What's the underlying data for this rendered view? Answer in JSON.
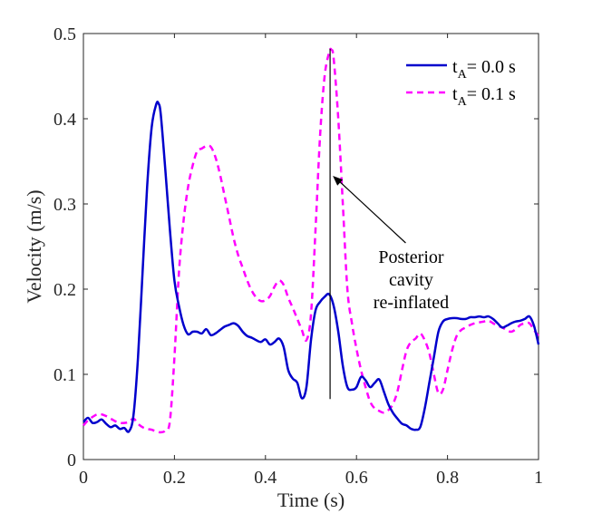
{
  "chart_data": {
    "type": "line",
    "title": "",
    "xlabel": "Time (s)",
    "ylabel": "Velocity (m/s)",
    "xlim": [
      0,
      1
    ],
    "ylim": [
      0,
      0.5
    ],
    "xticks": [
      0,
      0.2,
      0.4,
      0.6,
      0.8,
      1
    ],
    "xtick_labels": [
      "0",
      "0.2",
      "0.4",
      "0.6",
      "0.8",
      "1"
    ],
    "yticks": [
      0,
      0.1,
      0.2,
      0.3,
      0.4,
      0.5
    ],
    "ytick_labels": [
      "0",
      "0.1",
      "0.2",
      "0.3",
      "0.4",
      "0.5"
    ],
    "grid": false,
    "legend_position": "top-right",
    "series": [
      {
        "name": "t_A = 0.0 s",
        "label_main": "t",
        "label_sub": "A",
        "label_rest": "= 0.0 s",
        "color": "#0000CC",
        "style": "solid",
        "x": [
          0,
          0.01,
          0.02,
          0.03,
          0.04,
          0.05,
          0.06,
          0.07,
          0.08,
          0.09,
          0.1,
          0.11,
          0.12,
          0.13,
          0.14,
          0.15,
          0.16,
          0.165,
          0.17,
          0.18,
          0.19,
          0.2,
          0.21,
          0.22,
          0.23,
          0.24,
          0.25,
          0.26,
          0.27,
          0.28,
          0.29,
          0.3,
          0.31,
          0.32,
          0.33,
          0.34,
          0.35,
          0.36,
          0.37,
          0.38,
          0.39,
          0.4,
          0.41,
          0.42,
          0.43,
          0.44,
          0.45,
          0.46,
          0.47,
          0.48,
          0.49,
          0.5,
          0.51,
          0.52,
          0.53,
          0.54,
          0.55,
          0.56,
          0.57,
          0.58,
          0.59,
          0.6,
          0.61,
          0.62,
          0.63,
          0.64,
          0.65,
          0.66,
          0.67,
          0.68,
          0.69,
          0.7,
          0.71,
          0.72,
          0.73,
          0.74,
          0.75,
          0.76,
          0.77,
          0.78,
          0.79,
          0.8,
          0.81,
          0.82,
          0.83,
          0.84,
          0.85,
          0.86,
          0.87,
          0.88,
          0.89,
          0.9,
          0.91,
          0.92,
          0.93,
          0.94,
          0.95,
          0.96,
          0.97,
          0.98,
          0.99,
          1.0
        ],
        "y": [
          0.044,
          0.049,
          0.043,
          0.044,
          0.047,
          0.042,
          0.038,
          0.04,
          0.036,
          0.037,
          0.033,
          0.052,
          0.12,
          0.22,
          0.32,
          0.39,
          0.417,
          0.418,
          0.405,
          0.34,
          0.27,
          0.21,
          0.18,
          0.158,
          0.147,
          0.15,
          0.15,
          0.148,
          0.153,
          0.146,
          0.148,
          0.152,
          0.156,
          0.158,
          0.16,
          0.157,
          0.15,
          0.145,
          0.143,
          0.14,
          0.138,
          0.141,
          0.135,
          0.138,
          0.142,
          0.132,
          0.105,
          0.095,
          0.09,
          0.072,
          0.085,
          0.14,
          0.175,
          0.185,
          0.191,
          0.194,
          0.18,
          0.15,
          0.11,
          0.085,
          0.082,
          0.085,
          0.097,
          0.093,
          0.085,
          0.09,
          0.094,
          0.08,
          0.065,
          0.055,
          0.048,
          0.042,
          0.04,
          0.036,
          0.035,
          0.038,
          0.06,
          0.09,
          0.12,
          0.15,
          0.162,
          0.165,
          0.166,
          0.166,
          0.165,
          0.165,
          0.167,
          0.167,
          0.168,
          0.167,
          0.168,
          0.165,
          0.16,
          0.155,
          0.157,
          0.16,
          0.162,
          0.163,
          0.165,
          0.168,
          0.157,
          0.135
        ]
      },
      {
        "name": "t_A = 0.1 s",
        "label_main": "t",
        "label_sub": "A",
        "label_rest": "= 0.1 s",
        "color": "#FF00FF",
        "style": "dashed",
        "x": [
          0,
          0.01,
          0.02,
          0.03,
          0.04,
          0.05,
          0.06,
          0.07,
          0.08,
          0.09,
          0.1,
          0.11,
          0.12,
          0.13,
          0.14,
          0.15,
          0.16,
          0.17,
          0.18,
          0.19,
          0.2,
          0.21,
          0.22,
          0.23,
          0.24,
          0.25,
          0.26,
          0.27,
          0.28,
          0.29,
          0.3,
          0.31,
          0.32,
          0.33,
          0.34,
          0.35,
          0.36,
          0.37,
          0.38,
          0.39,
          0.4,
          0.41,
          0.42,
          0.43,
          0.44,
          0.45,
          0.46,
          0.47,
          0.48,
          0.49,
          0.5,
          0.51,
          0.52,
          0.53,
          0.54,
          0.545,
          0.55,
          0.56,
          0.57,
          0.58,
          0.59,
          0.6,
          0.61,
          0.62,
          0.63,
          0.64,
          0.65,
          0.66,
          0.67,
          0.68,
          0.69,
          0.7,
          0.71,
          0.72,
          0.73,
          0.74,
          0.75,
          0.76,
          0.77,
          0.78,
          0.79,
          0.8,
          0.81,
          0.82,
          0.83,
          0.84,
          0.85,
          0.86,
          0.87,
          0.88,
          0.89,
          0.9,
          0.91,
          0.92,
          0.93,
          0.94,
          0.95,
          0.96,
          0.97,
          0.98,
          0.99,
          1.0
        ],
        "y": [
          0.04,
          0.046,
          0.05,
          0.053,
          0.053,
          0.051,
          0.048,
          0.045,
          0.043,
          0.043,
          0.044,
          0.048,
          0.042,
          0.038,
          0.036,
          0.035,
          0.033,
          0.032,
          0.034,
          0.045,
          0.12,
          0.22,
          0.28,
          0.32,
          0.345,
          0.362,
          0.365,
          0.368,
          0.367,
          0.355,
          0.335,
          0.31,
          0.285,
          0.26,
          0.24,
          0.225,
          0.21,
          0.198,
          0.19,
          0.186,
          0.187,
          0.192,
          0.203,
          0.21,
          0.205,
          0.19,
          0.178,
          0.165,
          0.152,
          0.14,
          0.17,
          0.27,
          0.38,
          0.45,
          0.478,
          0.481,
          0.47,
          0.4,
          0.3,
          0.2,
          0.16,
          0.13,
          0.105,
          0.085,
          0.068,
          0.06,
          0.057,
          0.055,
          0.058,
          0.065,
          0.08,
          0.105,
          0.128,
          0.138,
          0.142,
          0.148,
          0.14,
          0.125,
          0.1,
          0.078,
          0.082,
          0.105,
          0.128,
          0.145,
          0.152,
          0.155,
          0.158,
          0.16,
          0.161,
          0.162,
          0.163,
          0.16,
          0.157,
          0.155,
          0.152,
          0.15,
          0.153,
          0.158,
          0.16,
          0.16,
          0.152,
          0.145
        ]
      }
    ],
    "annotations": [
      {
        "type": "vertical-line",
        "x": 0.542,
        "y_range": [
          0.071,
          0.482
        ],
        "color": "#000000"
      },
      {
        "type": "arrow-text",
        "lines": [
          "Posterior",
          "cavity",
          "re-inflated"
        ],
        "text_at": [
          0.72,
          0.25
        ],
        "arrow_to": [
          0.548,
          0.333
        ]
      }
    ]
  }
}
